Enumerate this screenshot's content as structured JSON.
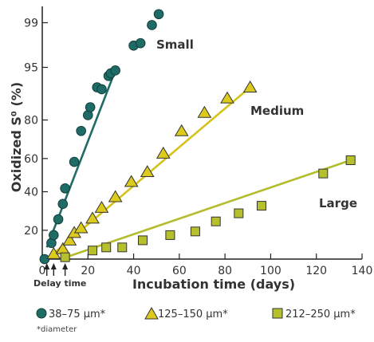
{
  "chart_data": {
    "type": "scatter",
    "y_scale": "probability",
    "title": "",
    "xlabel": "Incubation time (days)",
    "ylabel": "Oxidized S⁰ (%)",
    "xlim": [
      0,
      140
    ],
    "ylim": [
      10,
      99.5
    ],
    "x_ticks": [
      0,
      20,
      40,
      60,
      80,
      100,
      120,
      140
    ],
    "y_ticks": [
      20,
      40,
      60,
      80,
      95,
      99
    ],
    "annotation": "Delay time",
    "footnote": "*diameter",
    "colors": {
      "small": "#1f6b66",
      "medium": "#dccb1c",
      "large": "#b6c02c"
    },
    "series": [
      {
        "name": "Small",
        "legend": "38–75 µm*",
        "marker": "circle",
        "points": [
          [
            1,
            10
          ],
          [
            4,
            15
          ],
          [
            5,
            18
          ],
          [
            7,
            25
          ],
          [
            9,
            33
          ],
          [
            10,
            42
          ],
          [
            14,
            58
          ],
          [
            17,
            75
          ],
          [
            20,
            82
          ],
          [
            21,
            85
          ],
          [
            24,
            91
          ],
          [
            26,
            90.5
          ],
          [
            29,
            93.5
          ],
          [
            30,
            94
          ],
          [
            32,
            94.5
          ],
          [
            40,
            97.6
          ],
          [
            43,
            97.8
          ],
          [
            48,
            98.9
          ],
          [
            51,
            99.3
          ]
        ],
        "fit": {
          "x": [
            2,
            32
          ],
          "y": [
            13.5,
            94.5
          ]
        }
      },
      {
        "name": "Medium",
        "legend": "125–150 µm*",
        "marker": "triangle",
        "points": [
          [
            5,
            11.5
          ],
          [
            9,
            13
          ],
          [
            12,
            16
          ],
          [
            14,
            19
          ],
          [
            17,
            21
          ],
          [
            22,
            25.5
          ],
          [
            26,
            31
          ],
          [
            32,
            37
          ],
          [
            39,
            46
          ],
          [
            46,
            52
          ],
          [
            53,
            63
          ],
          [
            61,
            75
          ],
          [
            71,
            83
          ],
          [
            81,
            88
          ],
          [
            91,
            91
          ]
        ],
        "fit": {
          "x": [
            3,
            91
          ],
          "y": [
            10.5,
            91
          ]
        }
      },
      {
        "name": "Large",
        "legend": "212–250 µm*",
        "marker": "square",
        "points": [
          [
            10,
            10.5
          ],
          [
            22,
            12.5
          ],
          [
            28,
            13.5
          ],
          [
            35,
            13.5
          ],
          [
            44,
            16
          ],
          [
            56,
            18
          ],
          [
            67,
            19.5
          ],
          [
            76,
            24
          ],
          [
            86,
            28
          ],
          [
            96,
            32
          ],
          [
            123,
            51
          ],
          [
            135,
            59
          ]
        ],
        "fit": {
          "x": [
            8,
            135
          ],
          "y": [
            10,
            59
          ]
        }
      }
    ],
    "delay_arrows_x": [
      2,
      5,
      10
    ]
  }
}
